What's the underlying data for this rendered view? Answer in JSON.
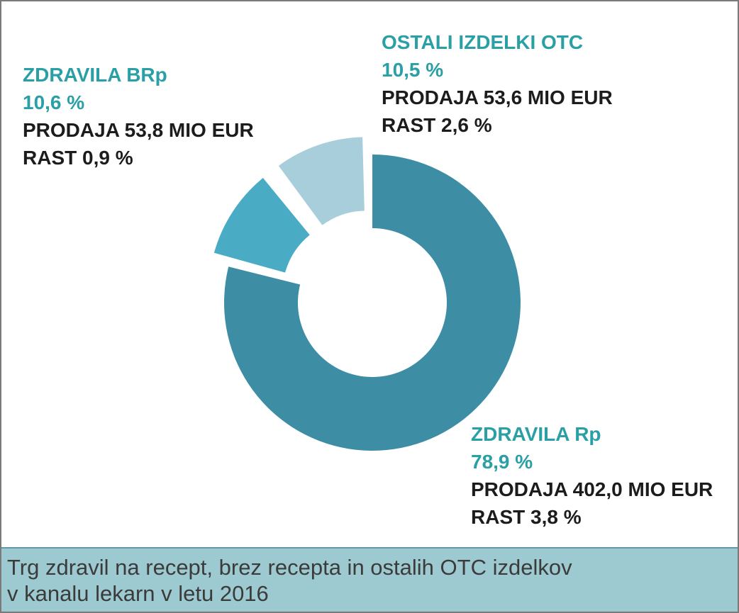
{
  "chart_data": {
    "type": "pie",
    "variant": "donut",
    "slices": [
      {
        "label": "ZDRAVILA Rp",
        "share": 78.9,
        "share_text": "78,9 %",
        "sales_text": "PRODAJA 402,0 MIO EUR",
        "growth_text": "RAST 3,8 %",
        "sales": 402.0,
        "growth": 3.8,
        "color": "#3d8ea5"
      },
      {
        "label": "ZDRAVILA BRp",
        "share": 10.6,
        "share_text": "10,6 %",
        "sales_text": "PRODAJA 53,8 MIO EUR",
        "growth_text": "RAST 0,9 %",
        "sales": 53.8,
        "growth": 0.9,
        "color": "#4aacc4"
      },
      {
        "label": "OSTALI IZDELKI OTC",
        "share": 10.5,
        "share_text": "10,5 %",
        "sales_text": "PRODAJA 53,6 MIO EUR",
        "growth_text": "RAST 2,6 %",
        "sales": 53.6,
        "growth": 2.6,
        "color": "#a8cedc"
      }
    ]
  },
  "colors": {
    "accent_text": "#2a9fa6",
    "footer_bg": "#9dc9d0"
  },
  "footer": {
    "caption_line1": "Trg zdravil na recept, brez recepta in ostalih OTC izdelkov",
    "caption_line2": "v kanalu lekarn v letu 2016"
  }
}
